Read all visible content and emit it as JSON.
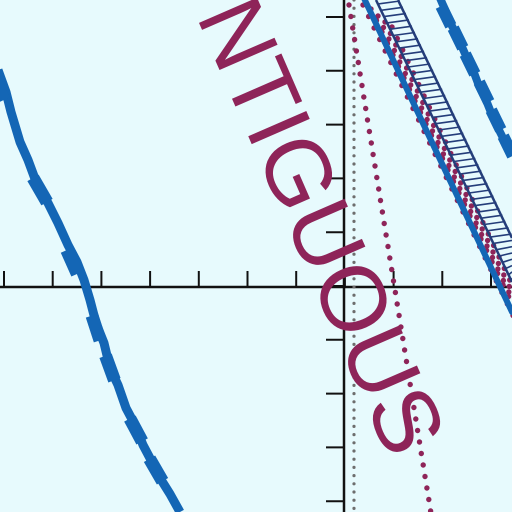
{
  "scene": {
    "word": "NTIGUOUS",
    "colors": {
      "background": "#e7fafd",
      "axis": "#111111",
      "curve": "#1466b5",
      "dots": "#8e2459",
      "text": "#8e2459",
      "grey_dots": "#6d6d6d",
      "navy": "#243d7a"
    }
  }
}
